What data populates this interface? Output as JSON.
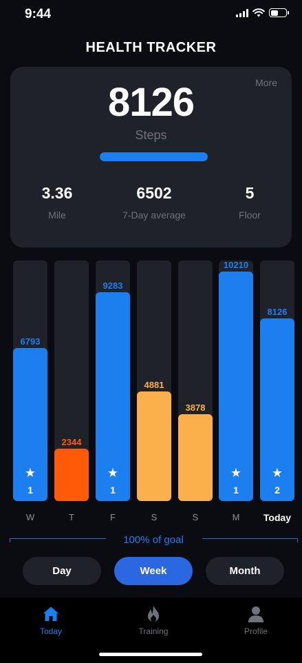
{
  "status_bar": {
    "time": "9:44",
    "battery_fraction": 0.5
  },
  "app_title": "HEALTH TRACKER",
  "summary": {
    "more_label": "More",
    "steps_value": "8126",
    "steps_label": "Steps",
    "progress_fraction": 1.0,
    "stats": [
      {
        "value": "3.36",
        "label": "Mile"
      },
      {
        "value": "6502",
        "label": "7-Day average"
      },
      {
        "value": "5",
        "label": "Floor"
      }
    ]
  },
  "colors": {
    "goal_met": "#1b7ff0",
    "partial": "#fbb04c",
    "low": "#ff5a08",
    "accent": "#2b67e0"
  },
  "chart_data": {
    "type": "bar",
    "categories": [
      "W",
      "T",
      "F",
      "S",
      "S",
      "M",
      "Today"
    ],
    "values": [
      6793,
      2344,
      9283,
      4881,
      3878,
      10210,
      8126
    ],
    "value_labels": [
      "6793",
      "2344",
      "9283",
      "4881",
      "3878",
      "10210",
      "8126"
    ],
    "bar_colors": [
      "#1b7ff0",
      "#ff5a08",
      "#1b7ff0",
      "#fbb04c",
      "#fbb04c",
      "#1b7ff0",
      "#1b7ff0"
    ],
    "label_colors": [
      "#1b7ff0",
      "#ff5a08",
      "#1b7ff0",
      "#fbb04c",
      "#fbb04c",
      "#1b7ff0",
      "#1b7ff0"
    ],
    "star_counts": [
      "1",
      "",
      "1",
      "",
      "",
      "1",
      "2"
    ],
    "ylim": [
      0,
      10700
    ]
  },
  "goal_text": "100% of goal",
  "segments": [
    {
      "label": "Day",
      "active": false
    },
    {
      "label": "Week",
      "active": true
    },
    {
      "label": "Month",
      "active": false
    }
  ],
  "tabs": [
    {
      "label": "Today",
      "icon": "home-icon",
      "active": true
    },
    {
      "label": "Training",
      "icon": "flame-icon",
      "active": false
    },
    {
      "label": "Profile",
      "icon": "person-icon",
      "active": false
    }
  ]
}
